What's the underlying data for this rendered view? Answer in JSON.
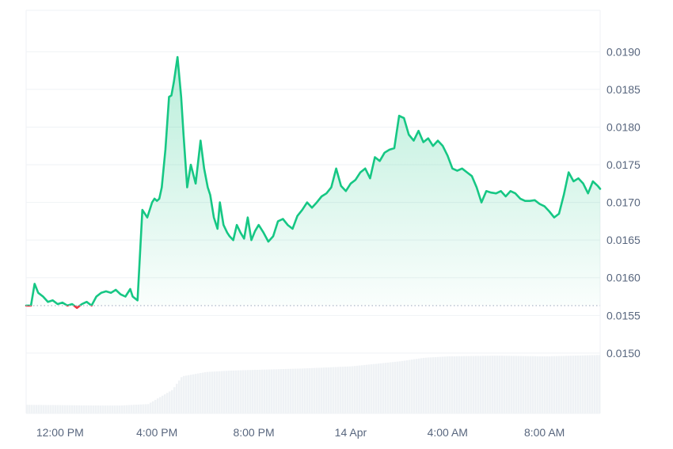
{
  "chart_data": {
    "type": "area",
    "title": "",
    "xlabel": "",
    "ylabel": "",
    "x_tick_labels": [
      "12:00 PM",
      "4:00 PM",
      "8:00 PM",
      "14 Apr",
      "4:00 AM",
      "8:00 AM"
    ],
    "x_tick_hours": [
      12,
      16,
      20,
      24,
      28,
      32
    ],
    "xlim_hours": [
      10.6,
      34.3
    ],
    "y_tick_labels": [
      "0.0150",
      "0.0155",
      "0.0160",
      "0.0165",
      "0.0170",
      "0.0175",
      "0.0180",
      "0.0185",
      "0.0190"
    ],
    "y_ticks": [
      0.015,
      0.0155,
      0.016,
      0.0165,
      0.017,
      0.0175,
      0.018,
      0.0185,
      0.019
    ],
    "ylim": [
      0.0142,
      0.01955
    ],
    "grid": true,
    "baseline": {
      "value": 0.01563,
      "style": "dotted"
    },
    "colors": {
      "up": "#16c784",
      "down": "#ea3943",
      "fill": "#16c784",
      "grid": "#eff2f5",
      "volume": "#eff2f5",
      "baseline": "#a6b0c3"
    },
    "series": [
      {
        "x_hours": [
          10.6,
          10.8,
          10.95,
          11.1,
          11.3,
          11.5,
          11.7,
          11.9,
          12.1,
          12.3,
          12.5,
          12.7,
          12.9,
          13.1,
          13.3,
          13.5,
          13.7,
          13.9,
          14.1,
          14.3,
          14.5,
          14.7,
          14.9,
          15.0,
          15.2,
          15.4,
          15.6,
          15.8,
          15.9,
          16.0,
          16.1,
          16.2,
          16.35,
          16.5,
          16.6,
          16.7,
          16.85,
          17.0,
          17.1,
          17.25,
          17.4,
          17.6,
          17.8,
          17.95,
          18.1,
          18.2,
          18.35,
          18.5,
          18.6,
          18.75,
          18.9,
          19.0,
          19.15,
          19.3,
          19.45,
          19.6,
          19.75,
          19.9,
          20.05,
          20.2,
          20.4,
          20.6,
          20.8,
          21.0,
          21.2,
          21.4,
          21.6,
          21.8,
          22.0,
          22.2,
          22.4,
          22.6,
          22.8,
          23.0,
          23.2,
          23.4,
          23.6,
          23.8,
          24.0,
          24.2,
          24.4,
          24.6,
          24.8,
          25.0,
          25.2,
          25.4,
          25.6,
          25.8,
          26.0,
          26.2,
          26.4,
          26.6,
          26.8,
          27.0,
          27.2,
          27.4,
          27.6,
          27.8,
          28.0,
          28.2,
          28.4,
          28.6,
          28.8,
          29.0,
          29.2,
          29.4,
          29.6,
          29.8,
          30.0,
          30.2,
          30.4,
          30.6,
          30.8,
          31.0,
          31.2,
          31.4,
          31.6,
          31.8,
          32.0,
          32.2,
          32.4,
          32.6,
          32.8,
          33.0,
          33.2,
          33.4,
          33.6,
          33.8,
          34.0,
          34.2,
          34.3
        ],
        "y": [
          0.01563,
          0.01563,
          0.01592,
          0.0158,
          0.01575,
          0.01568,
          0.0157,
          0.01565,
          0.01567,
          0.01563,
          0.01565,
          0.0156,
          0.01565,
          0.01568,
          0.01563,
          0.01575,
          0.0158,
          0.01582,
          0.0158,
          0.01584,
          0.01578,
          0.01575,
          0.01585,
          0.01575,
          0.0157,
          0.0169,
          0.0168,
          0.017,
          0.01705,
          0.01702,
          0.01705,
          0.0172,
          0.0177,
          0.0184,
          0.01842,
          0.0186,
          0.01893,
          0.0184,
          0.0179,
          0.0172,
          0.0175,
          0.01725,
          0.01782,
          0.01745,
          0.0172,
          0.0171,
          0.0168,
          0.01665,
          0.017,
          0.0167,
          0.0166,
          0.01655,
          0.0165,
          0.0167,
          0.0166,
          0.01652,
          0.0168,
          0.0165,
          0.01662,
          0.0167,
          0.0166,
          0.01648,
          0.01655,
          0.01675,
          0.01678,
          0.0167,
          0.01665,
          0.01682,
          0.0169,
          0.017,
          0.01693,
          0.017,
          0.01708,
          0.01712,
          0.0172,
          0.01745,
          0.01722,
          0.01715,
          0.01725,
          0.0173,
          0.0174,
          0.01745,
          0.01732,
          0.0176,
          0.01755,
          0.01766,
          0.0177,
          0.01772,
          0.01815,
          0.01812,
          0.0179,
          0.01782,
          0.01795,
          0.0178,
          0.01785,
          0.01775,
          0.01782,
          0.01775,
          0.01762,
          0.01745,
          0.01742,
          0.01745,
          0.0174,
          0.01735,
          0.0172,
          0.017,
          0.01715,
          0.01713,
          0.01712,
          0.01715,
          0.01708,
          0.01715,
          0.01712,
          0.01705,
          0.01702,
          0.01702,
          0.01703,
          0.01698,
          0.01695,
          0.01688,
          0.0168,
          0.01685,
          0.0171,
          0.0174,
          0.01728,
          0.01732,
          0.01725,
          0.01712,
          0.01728,
          0.01722,
          0.01718
        ]
      }
    ],
    "volume": {
      "x_hours": [
        10.6,
        13.8,
        14.4,
        15.6,
        16.2,
        16.6,
        17.0,
        18.0,
        19.0,
        20.0,
        22.0,
        24.0,
        26.0,
        27.0,
        28.0,
        30.0,
        32.0,
        34.3
      ],
      "relative": [
        0.12,
        0.11,
        0.11,
        0.13,
        0.25,
        0.33,
        0.52,
        0.58,
        0.6,
        0.61,
        0.63,
        0.66,
        0.73,
        0.78,
        0.8,
        0.81,
        0.8,
        0.82
      ]
    }
  }
}
